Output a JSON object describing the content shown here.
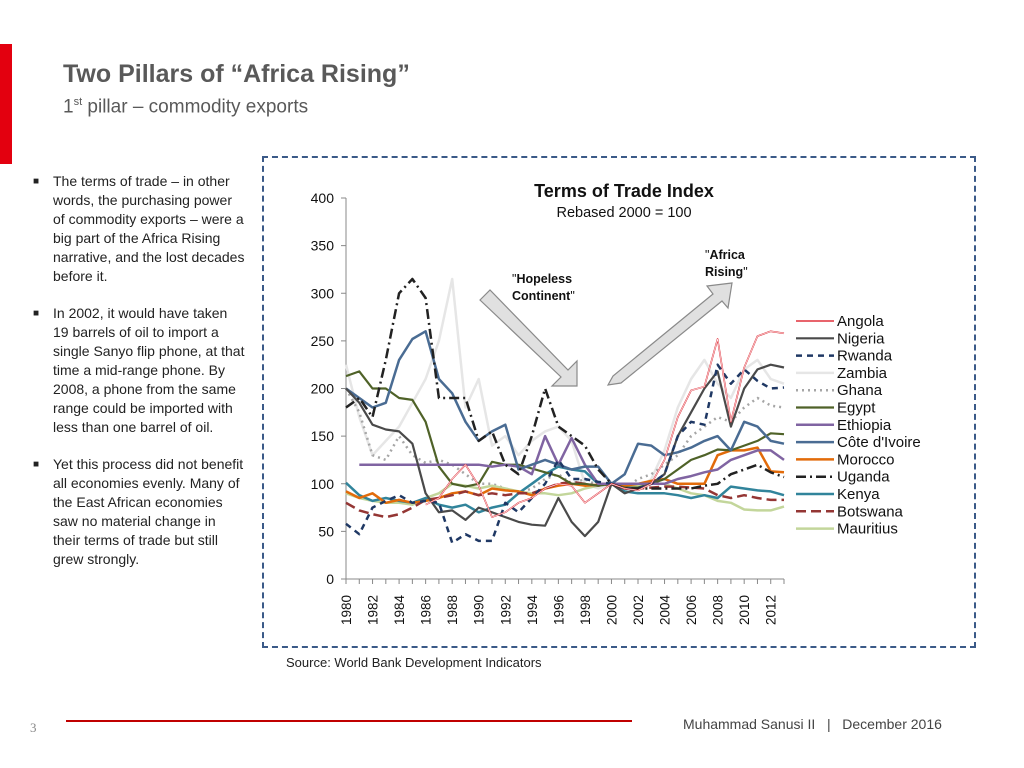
{
  "header": {
    "title": "Two Pillars of “Africa Rising”",
    "subtitle_ordinal": "1",
    "subtitle_sup": "st",
    "subtitle_rest": " pillar – commodity exports"
  },
  "bullets": [
    "The terms of trade – in other words, the purchasing power of commodity exports – were a big part of the Africa Rising narrative, and the lost decades before it.",
    "In 2002, it would have taken 19 barrels of oil to import a single Sanyo flip phone, at that time a mid-range phone. By 2008, a phone from the same range could be imported with less than one barrel of oil.",
    "Yet this process did not benefit all economies evenly. Many of the East African economies saw no material change in their terms of trade but still grew strongly."
  ],
  "source": "Source: World Bank Development Indicators",
  "footer": {
    "page_number": "3",
    "author": "Muhammad Sanusi II",
    "separator": "|",
    "date": "December 2016"
  },
  "colors": {
    "accent_red": "#e3000f",
    "dashed_border": "#3b5a88"
  },
  "chart_data": {
    "type": "line",
    "title": "Terms of Trade Index",
    "subtitle": "Rebased 2000 = 100",
    "xlabel": "",
    "ylabel": "",
    "ylim": [
      0,
      400
    ],
    "yticks": [
      0,
      50,
      100,
      150,
      200,
      250,
      300,
      350,
      400
    ],
    "xticks": [
      "1980",
      "1982",
      "1984",
      "1986",
      "1988",
      "1990",
      "1992",
      "1994",
      "1996",
      "1998",
      "2000",
      "2002",
      "2004",
      "2006",
      "2008",
      "2010",
      "2012"
    ],
    "x": [
      1980,
      1981,
      1982,
      1983,
      1984,
      1985,
      1986,
      1987,
      1988,
      1989,
      1990,
      1991,
      1992,
      1993,
      1994,
      1995,
      1996,
      1997,
      1998,
      1999,
      2000,
      2001,
      2002,
      2003,
      2004,
      2005,
      2006,
      2007,
      2008,
      2009,
      2010,
      2011,
      2012,
      2013
    ],
    "legend_position": "right",
    "annotations": [
      {
        "text_prefix": "\"",
        "text_bold": "Hopeless Continent",
        "text_suffix": "\""
      },
      {
        "text_prefix": "\"",
        "text_bold": "Africa Rising",
        "text_suffix": "\""
      }
    ],
    "series": [
      {
        "name": "Angola",
        "color": "#e0313b",
        "dash": "solid",
        "width": 2,
        "values": [
          null,
          null,
          null,
          null,
          null,
          null,
          78,
          85,
          105,
          120,
          98,
          65,
          70,
          80,
          85,
          95,
          100,
          98,
          80,
          90,
          100,
          95,
          93,
          100,
          125,
          170,
          198,
          202,
          252,
          165,
          222,
          255,
          260,
          258
        ]
      },
      {
        "name": "Nigeria",
        "color": "#4a4a4a",
        "dash": "solid",
        "width": 2.2,
        "values": [
          200,
          185,
          162,
          157,
          155,
          142,
          90,
          70,
          72,
          62,
          75,
          70,
          65,
          60,
          57,
          56,
          85,
          60,
          45,
          60,
          100,
          90,
          95,
          100,
          110,
          150,
          175,
          200,
          218,
          160,
          200,
          220,
          225,
          222
        ]
      },
      {
        "name": "Rwanda",
        "color": "#1f3864",
        "dash": "6,5",
        "width": 2.5,
        "values": [
          58,
          47,
          75,
          82,
          88,
          80,
          82,
          80,
          38,
          47,
          40,
          40,
          80,
          70,
          85,
          100,
          125,
          105,
          105,
          102,
          100,
          95,
          95,
          100,
          110,
          150,
          165,
          162,
          225,
          205,
          220,
          208,
          200,
          201
        ]
      },
      {
        "name": "Zambia",
        "color": "#e6e6e6",
        "dash": "solid",
        "width": 2.5,
        "values": [
          225,
          170,
          130,
          145,
          160,
          185,
          210,
          250,
          315,
          180,
          210,
          140,
          150,
          130,
          145,
          155,
          160,
          145,
          100,
          95,
          100,
          95,
          95,
          105,
          135,
          180,
          210,
          230,
          205,
          190,
          220,
          230,
          210,
          205
        ]
      },
      {
        "name": "Ghana",
        "color": "#a6a6a6",
        "dash": "2,4",
        "width": 2.5,
        "values": [
          200,
          175,
          130,
          125,
          150,
          130,
          122,
          125,
          120,
          110,
          100,
          100,
          95,
          90,
          95,
          105,
          110,
          100,
          105,
          98,
          100,
          95,
          105,
          110,
          120,
          130,
          150,
          160,
          170,
          165,
          180,
          190,
          182,
          180
        ]
      },
      {
        "name": "Egypt",
        "color": "#4f6228",
        "dash": "solid",
        "width": 2.2,
        "values": [
          213,
          218,
          200,
          200,
          190,
          188,
          165,
          118,
          100,
          97,
          100,
          123,
          120,
          120,
          116,
          112,
          108,
          100,
          100,
          98,
          100,
          96,
          96,
          100,
          105,
          115,
          125,
          130,
          136,
          135,
          140,
          145,
          153,
          152
        ]
      },
      {
        "name": "Ethiopia",
        "color": "#8064a2",
        "dash": "solid",
        "width": 2.5,
        "values": [
          null,
          120,
          120,
          120,
          120,
          120,
          120,
          120,
          120,
          120,
          120,
          118,
          120,
          118,
          110,
          150,
          120,
          148,
          120,
          100,
          100,
          100,
          100,
          100,
          100,
          105,
          108,
          112,
          115,
          125,
          130,
          135,
          135,
          125
        ]
      },
      {
        "name": "Côte d'Ivoire",
        "color": "#4a6c93",
        "dash": "solid",
        "width": 2.5,
        "values": [
          200,
          190,
          180,
          185,
          230,
          252,
          260,
          210,
          195,
          165,
          145,
          155,
          162,
          115,
          120,
          125,
          120,
          115,
          118,
          118,
          100,
          110,
          142,
          140,
          130,
          133,
          138,
          145,
          150,
          135,
          165,
          160,
          145,
          142
        ]
      },
      {
        "name": "Morocco",
        "color": "#e26b0a",
        "dash": "solid",
        "width": 2.5,
        "values": [
          92,
          85,
          90,
          80,
          83,
          80,
          82,
          85,
          90,
          92,
          88,
          95,
          93,
          92,
          88,
          95,
          98,
          100,
          98,
          99,
          100,
          98,
          100,
          103,
          105,
          100,
          100,
          100,
          130,
          135,
          135,
          138,
          113,
          112
        ]
      },
      {
        "name": "Uganda",
        "color": "#222222",
        "dash": "10,4,2,4",
        "width": 2.5,
        "values": [
          180,
          190,
          170,
          230,
          300,
          315,
          295,
          190,
          190,
          190,
          145,
          155,
          120,
          110,
          150,
          200,
          160,
          150,
          140,
          115,
          100,
          95,
          95,
          95,
          95,
          95,
          95,
          98,
          100,
          110,
          115,
          120,
          112,
          107
        ]
      },
      {
        "name": "Kenya",
        "color": "#31849b",
        "dash": "solid",
        "width": 2.5,
        "values": [
          101,
          88,
          82,
          85,
          82,
          80,
          85,
          78,
          75,
          78,
          70,
          75,
          78,
          90,
          100,
          110,
          118,
          115,
          113,
          100,
          100,
          92,
          90,
          90,
          90,
          88,
          85,
          88,
          85,
          97,
          95,
          93,
          92,
          88
        ]
      },
      {
        "name": "Botswana",
        "color": "#943634",
        "dash": "10,5",
        "width": 2.5,
        "values": [
          80,
          72,
          68,
          65,
          68,
          75,
          83,
          85,
          88,
          92,
          88,
          90,
          88,
          90,
          90,
          95,
          100,
          102,
          100,
          98,
          100,
          95,
          95,
          96,
          97,
          97,
          96,
          95,
          88,
          85,
          88,
          85,
          83,
          83
        ]
      },
      {
        "name": "Mauritius",
        "color": "#c3d69b",
        "dash": "solid",
        "width": 2.5,
        "values": [
          90,
          85,
          82,
          80,
          80,
          78,
          85,
          90,
          100,
          98,
          95,
          98,
          95,
          92,
          90,
          90,
          88,
          90,
          95,
          98,
          100,
          98,
          98,
          100,
          100,
          95,
          90,
          88,
          82,
          80,
          73,
          72,
          72,
          76
        ]
      }
    ]
  }
}
